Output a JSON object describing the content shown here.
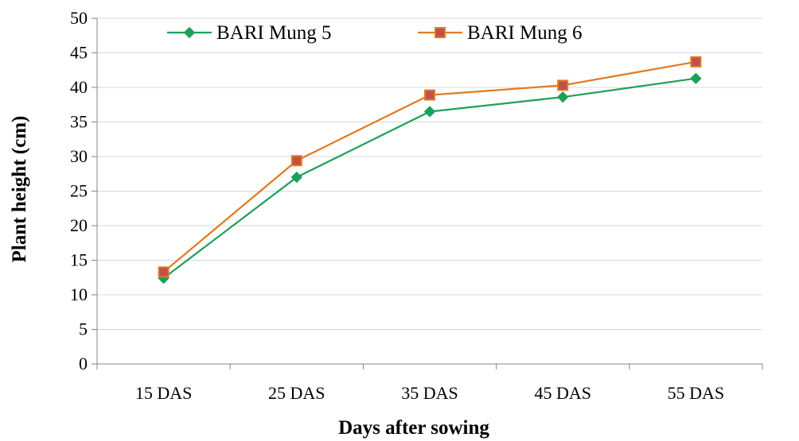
{
  "chart_data": {
    "type": "line",
    "title": "",
    "xlabel": "Days after sowing",
    "ylabel": "Plant height (cm)",
    "categories": [
      "15 DAS",
      "25 DAS",
      "35 DAS",
      "45 DAS",
      "55 DAS"
    ],
    "ylim": [
      0,
      50
    ],
    "yticks": [
      0,
      5,
      10,
      15,
      20,
      25,
      30,
      35,
      40,
      45,
      50
    ],
    "grid": true,
    "legend_position": "top",
    "series": [
      {
        "name": "BARI Mung 5",
        "values": [
          12.4,
          27.0,
          36.5,
          38.6,
          41.3
        ],
        "color": "#1fa05a",
        "marker": "diamond"
      },
      {
        "name": "BARI Mung 6",
        "values": [
          13.3,
          29.4,
          38.9,
          40.3,
          43.7
        ],
        "color": "#e07b24",
        "marker": "square"
      }
    ]
  }
}
